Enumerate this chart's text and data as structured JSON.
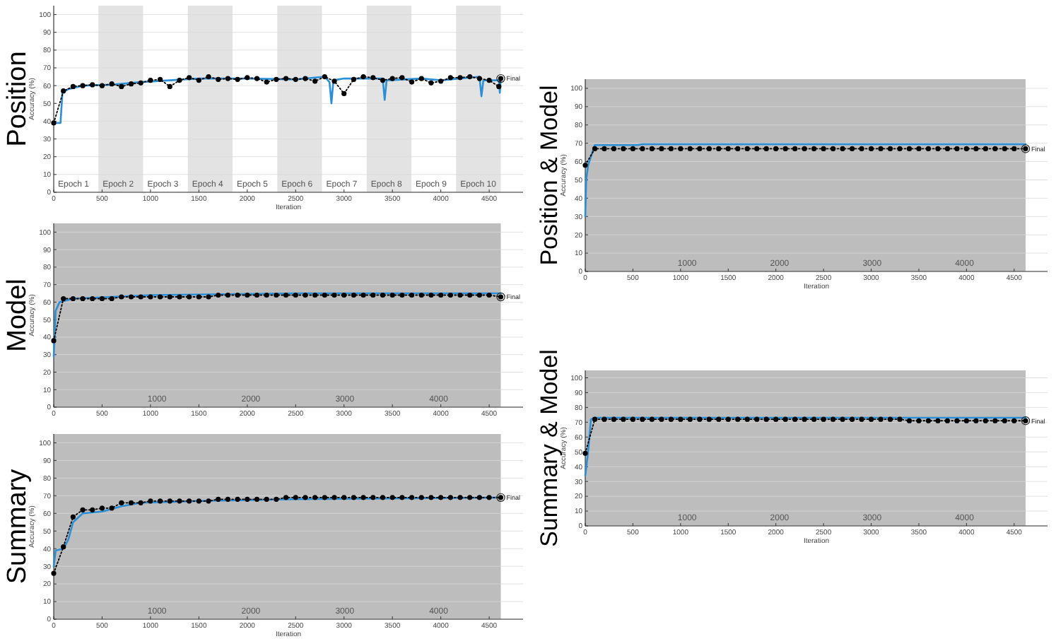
{
  "chart_data": [
    {
      "type": "line",
      "title": "Position",
      "xlabel": "Iteration",
      "ylabel": "Accuracy (%)",
      "xlim": [
        0,
        4850
      ],
      "xticks": [
        0,
        500,
        1000,
        1500,
        2000,
        2500,
        3000,
        3500,
        4000,
        4500
      ],
      "ylim": [
        0,
        105
      ],
      "yticks": [
        0,
        10,
        20,
        30,
        40,
        50,
        60,
        70,
        80,
        90,
        100
      ],
      "grid": "y",
      "bands": [
        {
          "axis": "x",
          "from": 462,
          "to": 924,
          "color": "#e3e3e3",
          "label": "Epoch 2"
        },
        {
          "axis": "x",
          "from": 1386,
          "to": 1848,
          "color": "#e3e3e3",
          "label": "Epoch 4"
        },
        {
          "axis": "x",
          "from": 2310,
          "to": 2772,
          "color": "#e3e3e3",
          "label": "Epoch 6"
        },
        {
          "axis": "x",
          "from": 3234,
          "to": 3696,
          "color": "#e3e3e3",
          "label": "Epoch 8"
        },
        {
          "axis": "x",
          "from": 4158,
          "to": 4620,
          "color": "#e3e3e3",
          "label": "Epoch 10"
        }
      ],
      "annotations": [
        "Epoch 1",
        "Epoch 3",
        "Epoch 5",
        "Epoch 7",
        "Epoch 9",
        "Final"
      ],
      "series": [
        {
          "color": "#2a8fd6",
          "line_style": "solid",
          "marker": "none",
          "x": [
            0,
            70,
            90,
            150,
            300,
            600,
            900,
            1200,
            1500,
            2000,
            2500,
            2800,
            2850,
            2870,
            2890,
            3000,
            3400,
            3420,
            3440,
            3800,
            4000,
            4400,
            4420,
            4440,
            4600,
            4610,
            4620
          ],
          "values": [
            39,
            39,
            56,
            58,
            60,
            60.5,
            62,
            63,
            64,
            64,
            63.5,
            65,
            62,
            50,
            63,
            64,
            64,
            52,
            63,
            64,
            63,
            65,
            54,
            63,
            63,
            56,
            64
          ]
        },
        {
          "color": "#000000",
          "line_style": "dotted",
          "marker": "circle",
          "x": [
            0,
            100,
            200,
            300,
            400,
            500,
            600,
            700,
            800,
            900,
            1000,
            1100,
            1200,
            1300,
            1400,
            1500,
            1600,
            1700,
            1800,
            1900,
            2000,
            2100,
            2200,
            2300,
            2400,
            2500,
            2600,
            2700,
            2800,
            2900,
            3000,
            3100,
            3200,
            3300,
            3400,
            3500,
            3600,
            3700,
            3800,
            3900,
            4000,
            4100,
            4200,
            4300,
            4400,
            4500,
            4600,
            4620
          ],
          "values": [
            39,
            57,
            59.5,
            60,
            60.5,
            60,
            61,
            59.5,
            61,
            61.5,
            63,
            63.5,
            59.5,
            63,
            64.5,
            63,
            65,
            63.5,
            64,
            63.5,
            64.5,
            64,
            62,
            63.5,
            64,
            63.5,
            64,
            62.5,
            65,
            62.5,
            55.5,
            63.5,
            65,
            64.5,
            63,
            64,
            64.5,
            62,
            64,
            61.5,
            62.5,
            64.5,
            64.5,
            65,
            64,
            63,
            59.5,
            64
          ]
        }
      ]
    },
    {
      "type": "line",
      "title": "Model",
      "ylabel": "Accuracy (%)",
      "xlim": [
        0,
        4850
      ],
      "xticks": [
        0,
        500,
        1000,
        1500,
        2000,
        2500,
        3000,
        3500,
        4000,
        4500
      ],
      "ylim": [
        0,
        105
      ],
      "yticks": [
        0,
        10,
        20,
        30,
        40,
        50,
        60,
        70,
        80,
        90,
        100
      ],
      "grid": "y",
      "bands": [
        {
          "axis": "x",
          "from": 0,
          "to": 4620,
          "color": "#bdbdbd"
        }
      ],
      "annotations": [
        "1000",
        "2000",
        "3000",
        "4000",
        "Final"
      ],
      "series": [
        {
          "color": "#2a8fd6",
          "line_style": "solid",
          "marker": "none",
          "x": [
            0,
            20,
            60,
            200,
            1000,
            2500,
            4620
          ],
          "values": [
            29,
            55,
            60,
            62,
            64,
            65,
            65
          ]
        },
        {
          "color": "#000000",
          "line_style": "dotted",
          "marker": "circle",
          "x": [
            0,
            100,
            200,
            300,
            400,
            500,
            600,
            700,
            800,
            900,
            1000,
            1100,
            1200,
            1300,
            1400,
            1500,
            1600,
            1700,
            1800,
            1900,
            2000,
            2100,
            2200,
            2300,
            2400,
            2500,
            2600,
            2700,
            2800,
            2900,
            3000,
            3100,
            3200,
            3300,
            3400,
            3500,
            3600,
            3700,
            3800,
            3900,
            4000,
            4100,
            4200,
            4300,
            4400,
            4500,
            4600,
            4620
          ],
          "values": [
            38,
            62,
            62,
            62,
            62,
            62,
            62,
            63,
            63,
            63,
            63,
            63,
            63,
            63,
            63,
            63,
            63,
            64,
            64,
            64,
            64,
            64,
            64,
            64,
            64,
            64,
            64,
            64,
            64,
            64,
            64,
            64,
            64,
            64,
            64,
            64,
            64,
            64,
            64,
            64,
            64,
            64,
            64,
            64,
            64,
            64,
            null,
            63
          ]
        }
      ]
    },
    {
      "type": "line",
      "title": "Summary",
      "xlabel": "Iteration",
      "ylabel": "Accuracy (%)",
      "xlim": [
        0,
        4850
      ],
      "xticks": [
        0,
        500,
        1000,
        1500,
        2000,
        2500,
        3000,
        3500,
        4000,
        4500
      ],
      "ylim": [
        0,
        105
      ],
      "yticks": [
        0,
        10,
        20,
        30,
        40,
        50,
        60,
        70,
        80,
        90,
        100
      ],
      "grid": "y",
      "bands": [
        {
          "axis": "x",
          "from": 0,
          "to": 4620,
          "color": "#bdbdbd"
        }
      ],
      "annotations": [
        "1000",
        "2000",
        "3000",
        "4000",
        "Final"
      ],
      "series": [
        {
          "color": "#2a8fd6",
          "line_style": "solid",
          "marker": "none",
          "x": [
            0,
            20,
            100,
            150,
            200,
            300,
            500,
            700,
            900,
            1500,
            2500,
            4620
          ],
          "values": [
            30,
            39,
            40,
            45,
            55,
            60,
            61,
            64,
            66,
            67,
            68,
            69
          ]
        },
        {
          "color": "#000000",
          "line_style": "dotted",
          "marker": "circle",
          "x": [
            0,
            100,
            200,
            300,
            400,
            500,
            600,
            700,
            800,
            900,
            1000,
            1100,
            1200,
            1300,
            1400,
            1500,
            1600,
            1700,
            1800,
            1900,
            2000,
            2100,
            2200,
            2300,
            2400,
            2500,
            2600,
            2700,
            2800,
            2900,
            3000,
            3100,
            3200,
            3300,
            3400,
            3500,
            3600,
            3700,
            3800,
            3900,
            4000,
            4100,
            4200,
            4300,
            4400,
            4500,
            4600,
            4620
          ],
          "values": [
            26,
            41,
            58,
            62,
            62,
            63,
            63,
            66,
            66,
            66,
            67,
            67,
            67,
            67,
            67,
            67,
            67,
            68,
            68,
            68,
            68,
            68,
            68,
            68,
            69,
            69,
            69,
            69,
            69,
            69,
            69,
            69,
            69,
            69,
            69,
            69,
            69,
            69,
            69,
            69,
            69,
            69,
            69,
            69,
            69,
            69,
            null,
            69
          ]
        }
      ]
    },
    {
      "type": "line",
      "title": "Position & Model",
      "xlabel": "Iteration",
      "ylabel": "Accuracy (%)",
      "xlim": [
        0,
        4850
      ],
      "xticks": [
        0,
        500,
        1000,
        1500,
        2000,
        2500,
        3000,
        3500,
        4000,
        4500
      ],
      "ylim": [
        0,
        105
      ],
      "yticks": [
        0,
        10,
        20,
        30,
        40,
        50,
        60,
        70,
        80,
        90,
        100
      ],
      "grid": "y",
      "bands": [
        {
          "axis": "x",
          "from": 0,
          "to": 4620,
          "color": "#bdbdbd"
        }
      ],
      "annotations": [
        "1000",
        "2000",
        "3000",
        "4000",
        "Final"
      ],
      "series": [
        {
          "color": "#2a8fd6",
          "line_style": "solid",
          "marker": "none",
          "x": [
            0,
            10,
            30,
            100,
            550,
            600,
            4620
          ],
          "values": [
            30,
            50,
            58,
            69,
            69,
            69.5,
            69.5
          ]
        },
        {
          "color": "#000000",
          "line_style": "dotted",
          "marker": "circle",
          "x": [
            0,
            100,
            200,
            300,
            400,
            500,
            600,
            700,
            800,
            900,
            1000,
            1100,
            1200,
            1300,
            1400,
            1500,
            1600,
            1700,
            1800,
            1900,
            2000,
            2100,
            2200,
            2300,
            2400,
            2500,
            2600,
            2700,
            2800,
            2900,
            3000,
            3100,
            3200,
            3300,
            3400,
            3500,
            3600,
            3700,
            3800,
            3900,
            4000,
            4100,
            4200,
            4300,
            4400,
            4500,
            4600,
            4620
          ],
          "values": [
            58,
            67,
            67,
            67,
            67,
            67,
            67,
            67,
            67,
            67,
            67,
            67,
            67,
            67,
            67,
            67,
            67,
            67,
            67,
            67,
            67,
            67,
            67,
            67,
            67,
            67,
            67,
            67,
            67,
            67,
            67,
            67,
            67,
            67,
            67,
            67,
            67,
            67,
            67,
            67,
            67,
            67,
            67,
            67,
            67,
            67,
            null,
            67
          ]
        }
      ]
    },
    {
      "type": "line",
      "title": "Summary & Model",
      "xlabel": "Iteration",
      "ylabel": "Accuracy (%)",
      "xlim": [
        0,
        4850
      ],
      "xticks": [
        0,
        500,
        1000,
        1500,
        2000,
        2500,
        3000,
        3500,
        4000,
        4500
      ],
      "ylim": [
        0,
        105
      ],
      "yticks": [
        0,
        10,
        20,
        30,
        40,
        50,
        60,
        70,
        80,
        90,
        100
      ],
      "grid": "y",
      "bands": [
        {
          "axis": "x",
          "from": 0,
          "to": 4620,
          "color": "#bdbdbd"
        }
      ],
      "annotations": [
        "1000",
        "2000",
        "3000",
        "4000",
        "Final"
      ],
      "series": [
        {
          "color": "#2a8fd6",
          "line_style": "solid",
          "marker": "none",
          "x": [
            0,
            30,
            60,
            100,
            3300,
            4620
          ],
          "values": [
            34,
            50,
            72,
            73,
            73,
            73
          ]
        },
        {
          "color": "#000000",
          "line_style": "dotted",
          "marker": "circle",
          "x": [
            0,
            100,
            200,
            300,
            400,
            500,
            600,
            700,
            800,
            900,
            1000,
            1100,
            1200,
            1300,
            1400,
            1500,
            1600,
            1700,
            1800,
            1900,
            2000,
            2100,
            2200,
            2300,
            2400,
            2500,
            2600,
            2700,
            2800,
            2900,
            3000,
            3100,
            3200,
            3300,
            3400,
            3500,
            3600,
            3700,
            3800,
            3900,
            4000,
            4100,
            4200,
            4300,
            4400,
            4500,
            4600,
            4620
          ],
          "values": [
            49,
            72,
            72,
            72,
            72,
            72,
            72,
            72,
            72,
            72,
            72,
            72,
            72,
            72,
            72,
            72,
            72,
            72,
            72,
            72,
            72,
            72,
            72,
            72,
            72,
            72,
            72,
            72,
            72,
            72,
            72,
            72,
            72,
            72,
            71,
            71,
            71,
            71,
            71,
            71,
            71,
            71,
            71,
            71,
            71,
            71,
            null,
            71
          ]
        }
      ]
    }
  ]
}
